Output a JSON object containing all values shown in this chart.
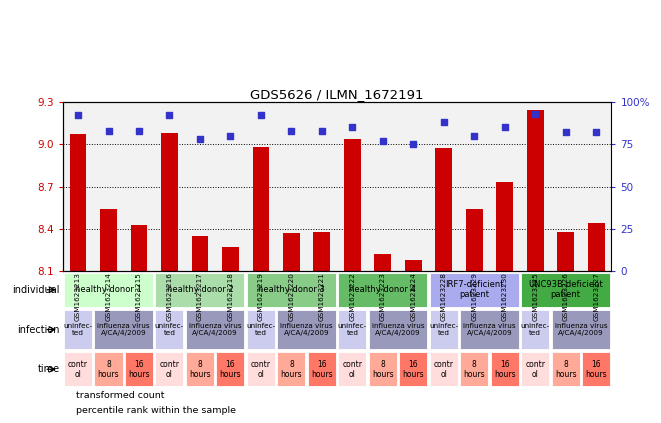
{
  "title": "GDS5626 / ILMN_1672191",
  "samples": [
    "GSM1623213",
    "GSM1623214",
    "GSM1623215",
    "GSM1623216",
    "GSM1623217",
    "GSM1623218",
    "GSM1623219",
    "GSM1623220",
    "GSM1623221",
    "GSM1623222",
    "GSM1623223",
    "GSM1623224",
    "GSM1623228",
    "GSM1623229",
    "GSM1623230",
    "GSM1623225",
    "GSM1623226",
    "GSM1623227"
  ],
  "bar_values": [
    9.07,
    8.54,
    8.43,
    9.08,
    8.35,
    8.27,
    8.98,
    8.37,
    8.38,
    9.04,
    8.22,
    8.18,
    8.97,
    8.54,
    8.73,
    9.24,
    8.38,
    8.44
  ],
  "dot_values": [
    92,
    83,
    83,
    92,
    78,
    80,
    92,
    83,
    83,
    85,
    77,
    75,
    88,
    80,
    85,
    93,
    82,
    82
  ],
  "ylim_left": [
    8.1,
    9.3
  ],
  "ylim_right": [
    0,
    100
  ],
  "yticks_left": [
    8.1,
    8.4,
    8.7,
    9.0,
    9.3
  ],
  "yticks_right": [
    0,
    25,
    50,
    75,
    100
  ],
  "bar_color": "#cc0000",
  "dot_color": "#3333cc",
  "individual_groups": [
    {
      "label": "healthy donor 1",
      "start": 0,
      "end": 3,
      "color": "#ccffcc"
    },
    {
      "label": "healthy donor 2",
      "start": 3,
      "end": 6,
      "color": "#aaddaa"
    },
    {
      "label": "healthy donor 3",
      "start": 6,
      "end": 9,
      "color": "#88cc88"
    },
    {
      "label": "healthy donor 4",
      "start": 9,
      "end": 12,
      "color": "#66bb66"
    },
    {
      "label": "IRF7-deficient\npatient",
      "start": 12,
      "end": 15,
      "color": "#aaaaee"
    },
    {
      "label": "UNC93B-deficient\npatient",
      "start": 15,
      "end": 18,
      "color": "#44aa44"
    }
  ],
  "infection_groups": [
    {
      "label": "uninfec-\nted",
      "start": 0,
      "end": 1,
      "color": "#ccccee"
    },
    {
      "label": "influenza virus\nA/CA/4/2009",
      "start": 1,
      "end": 3,
      "color": "#9999bb"
    },
    {
      "label": "uninfec-\nted",
      "start": 3,
      "end": 4,
      "color": "#ccccee"
    },
    {
      "label": "influenza virus\nA/CA/4/2009",
      "start": 4,
      "end": 6,
      "color": "#9999bb"
    },
    {
      "label": "uninfec-\nted",
      "start": 6,
      "end": 7,
      "color": "#ccccee"
    },
    {
      "label": "influenza virus\nA/CA/4/2009",
      "start": 7,
      "end": 9,
      "color": "#9999bb"
    },
    {
      "label": "uninfec-\nted",
      "start": 9,
      "end": 10,
      "color": "#ccccee"
    },
    {
      "label": "influenza virus\nA/CA/4/2009",
      "start": 10,
      "end": 12,
      "color": "#9999bb"
    },
    {
      "label": "uninfec-\nted",
      "start": 12,
      "end": 13,
      "color": "#ccccee"
    },
    {
      "label": "influenza virus\nA/CA/4/2009",
      "start": 13,
      "end": 15,
      "color": "#9999bb"
    },
    {
      "label": "uninfec-\nted",
      "start": 15,
      "end": 16,
      "color": "#ccccee"
    },
    {
      "label": "influenza virus\nA/CA/4/2009",
      "start": 16,
      "end": 18,
      "color": "#9999bb"
    }
  ],
  "time_groups": [
    {
      "label": "contr\nol",
      "start": 0,
      "end": 1,
      "color": "#ffdddd"
    },
    {
      "label": "8\nhours",
      "start": 1,
      "end": 2,
      "color": "#ffaa99"
    },
    {
      "label": "16\nhours",
      "start": 2,
      "end": 3,
      "color": "#ff7766"
    },
    {
      "label": "contr\nol",
      "start": 3,
      "end": 4,
      "color": "#ffdddd"
    },
    {
      "label": "8\nhours",
      "start": 4,
      "end": 5,
      "color": "#ffaa99"
    },
    {
      "label": "16\nhours",
      "start": 5,
      "end": 6,
      "color": "#ff7766"
    },
    {
      "label": "contr\nol",
      "start": 6,
      "end": 7,
      "color": "#ffdddd"
    },
    {
      "label": "8\nhours",
      "start": 7,
      "end": 8,
      "color": "#ffaa99"
    },
    {
      "label": "16\nhours",
      "start": 8,
      "end": 9,
      "color": "#ff7766"
    },
    {
      "label": "contr\nol",
      "start": 9,
      "end": 10,
      "color": "#ffdddd"
    },
    {
      "label": "8\nhours",
      "start": 10,
      "end": 11,
      "color": "#ffaa99"
    },
    {
      "label": "16\nhours",
      "start": 11,
      "end": 12,
      "color": "#ff7766"
    },
    {
      "label": "contr\nol",
      "start": 12,
      "end": 13,
      "color": "#ffdddd"
    },
    {
      "label": "8\nhours",
      "start": 13,
      "end": 14,
      "color": "#ffaa99"
    },
    {
      "label": "16\nhours",
      "start": 14,
      "end": 15,
      "color": "#ff7766"
    },
    {
      "label": "contr\nol",
      "start": 15,
      "end": 16,
      "color": "#ffdddd"
    },
    {
      "label": "8\nhours",
      "start": 16,
      "end": 17,
      "color": "#ffaa99"
    },
    {
      "label": "16\nhours",
      "start": 17,
      "end": 18,
      "color": "#ff7766"
    }
  ],
  "legend_items": [
    {
      "color": "#cc0000",
      "label": "transformed count"
    },
    {
      "color": "#3333cc",
      "label": "percentile rank within the sample"
    }
  ],
  "grid_yticks": [
    9.0,
    8.7,
    8.4
  ],
  "sample_col_color": "#cccccc"
}
